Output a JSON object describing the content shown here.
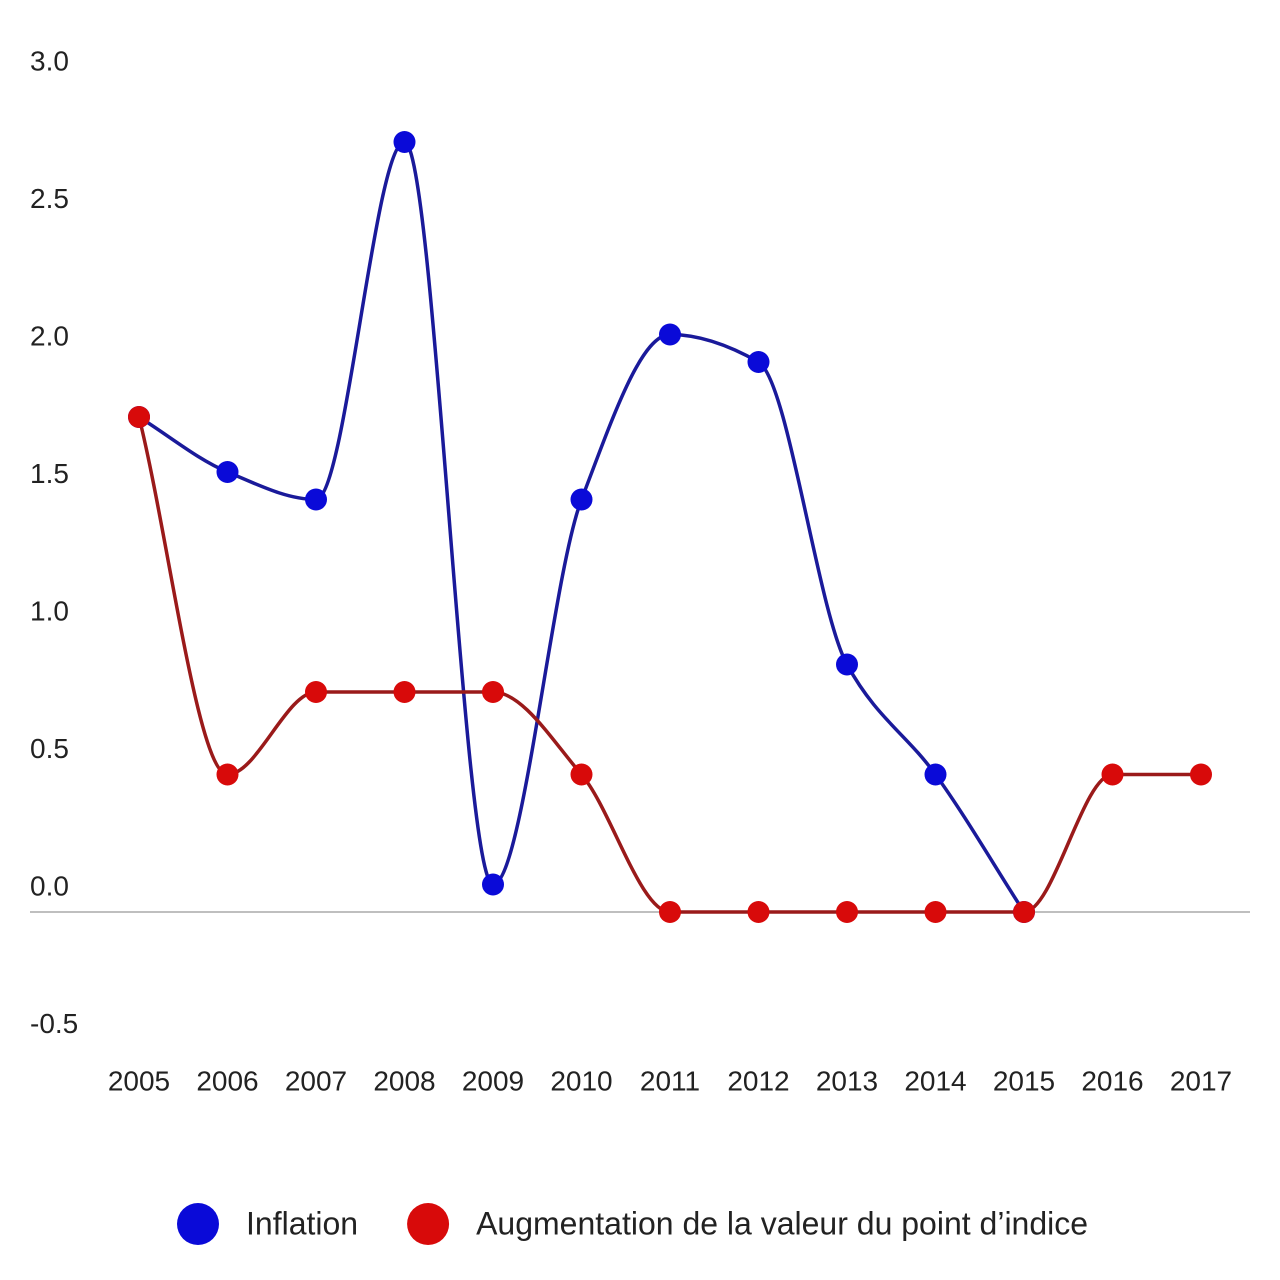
{
  "chart_data": {
    "type": "line",
    "categories": [
      "2005",
      "2006",
      "2007",
      "2008",
      "2009",
      "2010",
      "2011",
      "2012",
      "2013",
      "2014",
      "2015",
      "2016",
      "2017"
    ],
    "series": [
      {
        "name": "Inflation",
        "color": "#0a0ad8",
        "line_color": "#1a1a9a",
        "values": [
          1.8,
          1.6,
          1.5,
          2.8,
          0.1,
          1.5,
          2.1,
          2.0,
          0.9,
          0.5,
          0,
          null,
          null
        ]
      },
      {
        "name": "Augmentation de la valeur du point d’indice",
        "color": "#d80a0a",
        "line_color": "#9a1a1a",
        "values": [
          1.8,
          0.5,
          0.8,
          0.8,
          0.8,
          0.5,
          0,
          0,
          0,
          0,
          0,
          0.5,
          0.5
        ]
      }
    ],
    "ylim": [
      -0.5,
      3.0
    ],
    "yticks": [
      {
        "value": -0.5,
        "label": "-0.5"
      },
      {
        "value": 0,
        "label": "0.0"
      },
      {
        "value": 0.5,
        "label": "0.5"
      },
      {
        "value": 1,
        "label": "1.0"
      },
      {
        "value": 1.5,
        "label": "1.5"
      },
      {
        "value": 2,
        "label": "2.0"
      },
      {
        "value": 2.5,
        "label": "2.5"
      },
      {
        "value": 3,
        "label": "3.0"
      }
    ],
    "grid": false,
    "legend": "bottom"
  }
}
